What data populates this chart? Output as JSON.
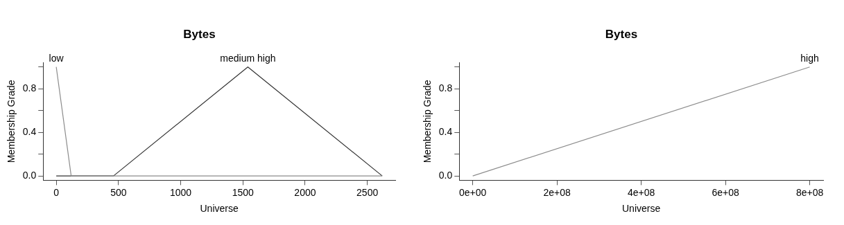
{
  "chart_data": [
    {
      "type": "line",
      "title": "Bytes",
      "xlabel": "Universe",
      "ylabel": "Membership Grade",
      "marker": "none",
      "xlim": [
        -105,
        2725
      ],
      "ylim": [
        -0.04,
        1.04
      ],
      "xticks": [
        0,
        500,
        1000,
        1500,
        2000,
        2500
      ],
      "yticks": [
        {
          "value": 0,
          "label": "0.0"
        },
        {
          "value": 0.2,
          "label": null
        },
        {
          "value": 0.4,
          "label": "0.4"
        },
        {
          "value": 0.6,
          "label": null
        },
        {
          "value": 0.8,
          "label": "0.8"
        },
        {
          "value": 1,
          "label": null
        }
      ],
      "series": [
        {
          "name": "low",
          "color": "#8c8c8c",
          "x": [
            0,
            120,
            2620
          ],
          "values": [
            1,
            0,
            0
          ]
        },
        {
          "name": "medium high",
          "color": "#333333",
          "x": [
            0,
            460,
            1540,
            2620
          ],
          "values": [
            0,
            0,
            1,
            0
          ]
        }
      ]
    },
    {
      "type": "line",
      "title": "Bytes",
      "xlabel": "Universe",
      "ylabel": "Membership Grade",
      "marker": "none",
      "xlim": [
        -32000000,
        832000000
      ],
      "ylim": [
        -0.04,
        1.04
      ],
      "xticks": [
        {
          "value": 0,
          "label": "0e+00"
        },
        {
          "value": 200000000,
          "label": "2e+08"
        },
        {
          "value": 400000000,
          "label": "4e+08"
        },
        {
          "value": 600000000,
          "label": "6e+08"
        },
        {
          "value": 800000000,
          "label": "8e+08"
        }
      ],
      "yticks": [
        {
          "value": 0,
          "label": "0.0"
        },
        {
          "value": 0.2,
          "label": null
        },
        {
          "value": 0.4,
          "label": "0.4"
        },
        {
          "value": 0.6,
          "label": null
        },
        {
          "value": 0.8,
          "label": "0.8"
        },
        {
          "value": 1,
          "label": null
        }
      ],
      "series": [
        {
          "name": "high",
          "color": "#8c8c8c",
          "x": [
            0,
            800000000
          ],
          "values": [
            0,
            1
          ]
        }
      ]
    }
  ]
}
